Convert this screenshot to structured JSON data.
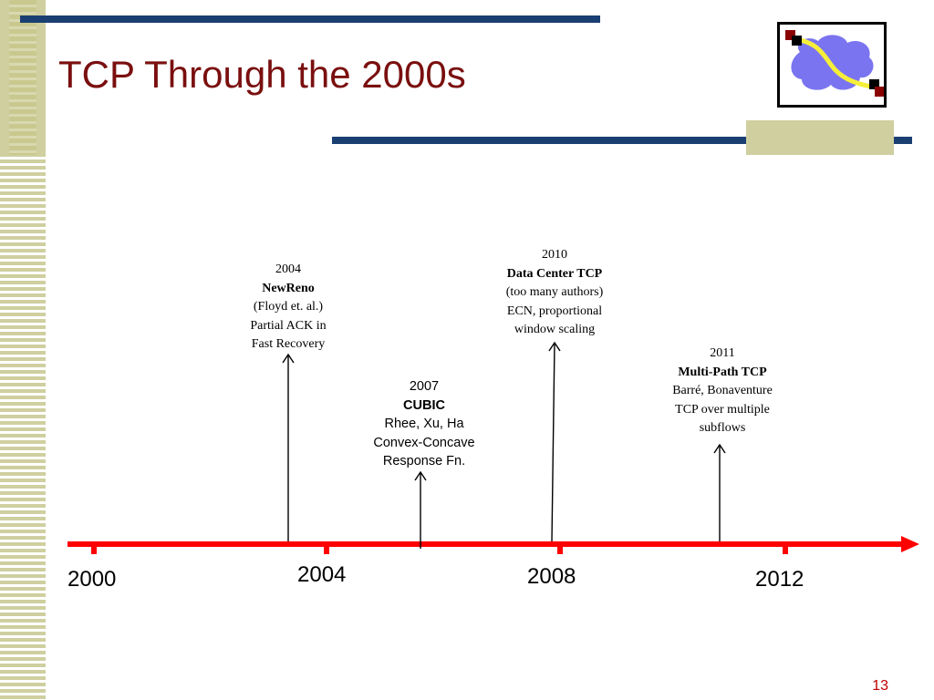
{
  "slide": {
    "title": "TCP Through the 2000s",
    "page_number": "13"
  },
  "timeline": {
    "axis_labels": [
      "2000",
      "2004",
      "2008",
      "2012"
    ],
    "events": [
      {
        "year": "2004",
        "name": "NewReno",
        "line1": "(Floyd et. al.)",
        "line2": "Partial ACK in",
        "line3": "Fast Recovery"
      },
      {
        "year": "2007",
        "name": "CUBIC",
        "line1": "Rhee, Xu, Ha",
        "line2": "Convex-Concave",
        "line3": "Response Fn."
      },
      {
        "year": "2010",
        "name": "Data Center TCP",
        "line1": "(too many authors)",
        "line2": "ECN, proportional",
        "line3": "window scaling"
      },
      {
        "year": "2011",
        "name": "Multi-Path TCP",
        "line1": "Barré, Bonaventure",
        "line2": "TCP over multiple",
        "line3": "subflows"
      }
    ]
  },
  "colors": {
    "title": "#7a0f0f",
    "timeline": "#ff0000",
    "bars": "#1a3f72",
    "accent": "#cfcfa0"
  },
  "icons": {
    "logo": "network-cloud-icon"
  }
}
